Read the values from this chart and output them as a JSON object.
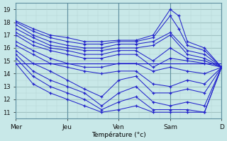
{
  "xlabel": "Température (°c)",
  "background_color": "#c8e8e8",
  "grid_color_major": "#9abcbc",
  "grid_color_minor": "#b5d5d5",
  "line_color": "#2222cc",
  "xlim": [
    0,
    120
  ],
  "ylim": [
    10.5,
    19.5
  ],
  "yticks": [
    11,
    12,
    13,
    14,
    15,
    16,
    17,
    18,
    19
  ],
  "xtick_positions": [
    0,
    30,
    60,
    90,
    120
  ],
  "xtick_labels": [
    "Mer",
    "Jeu",
    "Ven",
    "Sam",
    "D"
  ],
  "hline_y": 14.8,
  "lines": [
    [
      0,
      18.1,
      10,
      17.5,
      20,
      17.0,
      30,
      16.8,
      40,
      16.5,
      50,
      16.5,
      60,
      16.6,
      70,
      16.6,
      80,
      17.0,
      90,
      19.0,
      95,
      18.5,
      100,
      16.5,
      110,
      16.0,
      120,
      14.5
    ],
    [
      0,
      18.0,
      10,
      17.3,
      20,
      16.8,
      30,
      16.5,
      40,
      16.3,
      50,
      16.3,
      60,
      16.5,
      70,
      16.5,
      80,
      16.8,
      90,
      18.5,
      95,
      17.5,
      100,
      16.2,
      110,
      15.8,
      120,
      14.5
    ],
    [
      0,
      17.8,
      10,
      17.0,
      20,
      16.5,
      30,
      16.2,
      40,
      16.0,
      50,
      16.0,
      60,
      16.3,
      70,
      16.3,
      80,
      16.5,
      90,
      17.2,
      100,
      15.8,
      110,
      15.5,
      120,
      14.5
    ],
    [
      0,
      17.5,
      10,
      16.8,
      20,
      16.2,
      30,
      16.0,
      40,
      15.8,
      50,
      15.8,
      60,
      16.0,
      70,
      16.0,
      80,
      16.2,
      90,
      17.0,
      100,
      15.5,
      110,
      15.2,
      120,
      14.5
    ],
    [
      0,
      17.2,
      10,
      16.5,
      20,
      16.0,
      30,
      15.8,
      40,
      15.5,
      50,
      15.5,
      60,
      15.8,
      70,
      15.8,
      80,
      15.0,
      90,
      16.0,
      100,
      15.2,
      110,
      15.0,
      120,
      14.5
    ],
    [
      0,
      17.0,
      10,
      16.2,
      20,
      15.8,
      30,
      15.5,
      40,
      15.2,
      50,
      15.2,
      60,
      15.5,
      70,
      15.5,
      80,
      14.5,
      90,
      15.2,
      100,
      15.0,
      110,
      14.8,
      120,
      14.5
    ],
    [
      0,
      16.5,
      10,
      15.8,
      20,
      15.2,
      30,
      14.8,
      40,
      14.5,
      50,
      14.5,
      60,
      14.8,
      70,
      14.8,
      80,
      14.2,
      90,
      14.5,
      100,
      14.2,
      110,
      14.0,
      120,
      14.5
    ],
    [
      0,
      16.2,
      10,
      15.5,
      20,
      14.8,
      30,
      14.5,
      40,
      14.2,
      50,
      14.0,
      60,
      14.2,
      70,
      14.2,
      80,
      13.2,
      90,
      13.0,
      100,
      13.5,
      110,
      13.2,
      120,
      14.5
    ],
    [
      0,
      15.8,
      10,
      14.8,
      20,
      14.2,
      30,
      13.5,
      40,
      12.8,
      50,
      12.2,
      60,
      13.5,
      70,
      13.8,
      80,
      12.5,
      90,
      12.5,
      100,
      12.8,
      110,
      12.5,
      120,
      14.5
    ],
    [
      0,
      15.5,
      10,
      14.2,
      20,
      13.5,
      30,
      13.0,
      40,
      12.5,
      50,
      11.5,
      60,
      12.5,
      70,
      13.0,
      80,
      11.8,
      90,
      11.5,
      100,
      11.8,
      110,
      11.5,
      120,
      14.5
    ],
    [
      0,
      15.2,
      10,
      13.8,
      20,
      13.0,
      30,
      12.5,
      40,
      12.0,
      50,
      11.2,
      60,
      11.8,
      70,
      12.2,
      80,
      11.2,
      90,
      11.2,
      100,
      11.2,
      110,
      11.0,
      120,
      14.5
    ],
    [
      0,
      14.8,
      10,
      13.2,
      20,
      12.5,
      30,
      12.0,
      40,
      11.5,
      50,
      11.0,
      60,
      11.2,
      70,
      11.5,
      80,
      11.0,
      90,
      11.0,
      100,
      11.0,
      110,
      11.0,
      120,
      14.5
    ]
  ]
}
